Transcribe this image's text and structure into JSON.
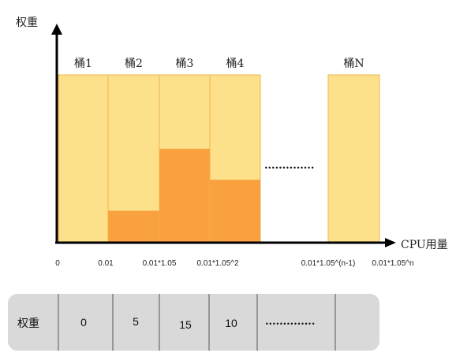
{
  "chart_data": {
    "type": "bar",
    "ylabel": "权重",
    "xlabel": "CPU用量",
    "buckets": [
      {
        "label": "桶1",
        "weight": 0
      },
      {
        "label": "桶2",
        "weight": 5
      },
      {
        "label": "桶3",
        "weight": 15
      },
      {
        "label": "桶4",
        "weight": 10
      },
      {
        "label": "桶N",
        "weight": null
      }
    ],
    "x_ticks": [
      "0",
      "0.01",
      "0.01*1.05",
      "0.01*1.05^2",
      "0.01*1.05^(n-1)",
      "0.01*1.05^n"
    ],
    "ellipsis": "..............",
    "colors": {
      "bucket_fill": "#fde08a",
      "bucket_stroke": "#f0b64e",
      "weight_fill": "#f9a13e",
      "axis": "#000000",
      "table_bg": "#d9d9d9"
    }
  },
  "table": {
    "header": "权重",
    "values": [
      "0",
      "5",
      "15",
      "10"
    ],
    "ellipsis": "..............",
    "last": ""
  }
}
